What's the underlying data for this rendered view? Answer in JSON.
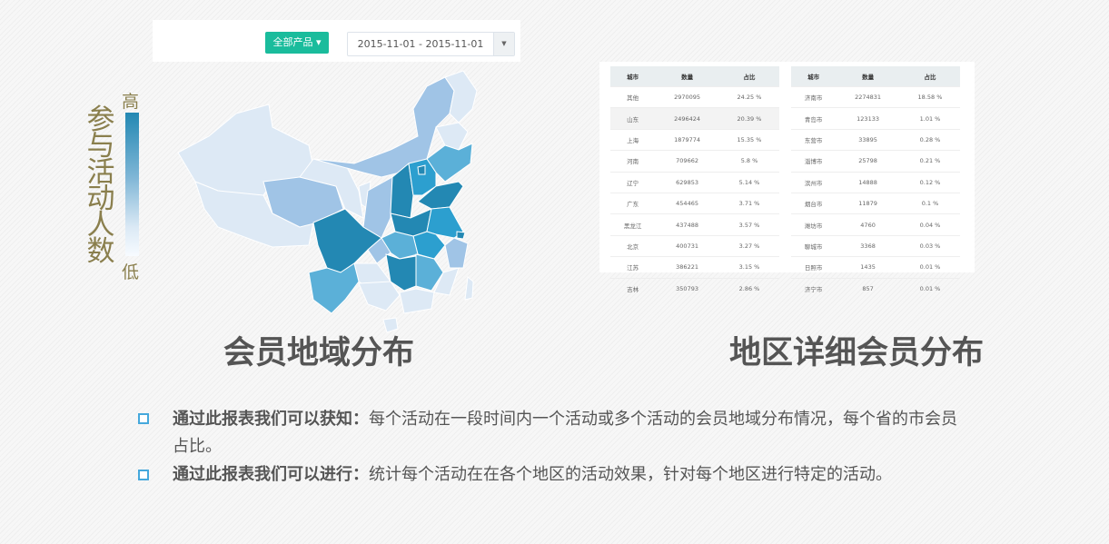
{
  "controls": {
    "product_button": "全部产品",
    "date_range": "2015-11-01 - 2015-11-01"
  },
  "legend": {
    "title": "参与活动人数",
    "high": "高",
    "low": "低",
    "colors": [
      "#2388b3",
      "#2c9fcf",
      "#5bb0d8",
      "#a0c4e6",
      "#dde9f5"
    ]
  },
  "headings": {
    "map": "会员地域分布",
    "detail": "地区详细会员分布"
  },
  "table_left": {
    "headers": [
      "城市",
      "数量",
      "占比"
    ],
    "rows": [
      [
        "其他",
        "2970095",
        "24.25 %"
      ],
      [
        "山东",
        "2496424",
        "20.39 %"
      ],
      [
        "上海",
        "1879774",
        "15.35 %"
      ],
      [
        "河南",
        "709662",
        "5.8 %"
      ],
      [
        "辽宁",
        "629853",
        "5.14 %"
      ],
      [
        "广东",
        "454465",
        "3.71 %"
      ],
      [
        "黑龙江",
        "437488",
        "3.57 %"
      ],
      [
        "北京",
        "400731",
        "3.27 %"
      ],
      [
        "江苏",
        "386221",
        "3.15 %"
      ],
      [
        "吉林",
        "350793",
        "2.86 %"
      ]
    ]
  },
  "table_right": {
    "headers": [
      "城市",
      "数量",
      "占比"
    ],
    "rows": [
      [
        "济南市",
        "2274831",
        "18.58 %"
      ],
      [
        "青岛市",
        "123133",
        "1.01 %"
      ],
      [
        "东营市",
        "33895",
        "0.28 %"
      ],
      [
        "淄博市",
        "25798",
        "0.21 %"
      ],
      [
        "滨州市",
        "14888",
        "0.12 %"
      ],
      [
        "烟台市",
        "11879",
        "0.1 %"
      ],
      [
        "潍坊市",
        "4760",
        "0.04 %"
      ],
      [
        "聊城市",
        "3368",
        "0.03 %"
      ],
      [
        "日照市",
        "1435",
        "0.01 %"
      ],
      [
        "济宁市",
        "857",
        "0.01 %"
      ]
    ]
  },
  "bullets": [
    {
      "label": "通过此报表我们可以获知：",
      "text": "每个活动在一段时间内一个活动或多个活动的会员地域分布情况，每个省的市会员占比。"
    },
    {
      "label": "通过此报表我们可以进行：",
      "text": "统计每个活动在在各个地区的活动效果，针对每个地区进行特定的活动。"
    }
  ]
}
